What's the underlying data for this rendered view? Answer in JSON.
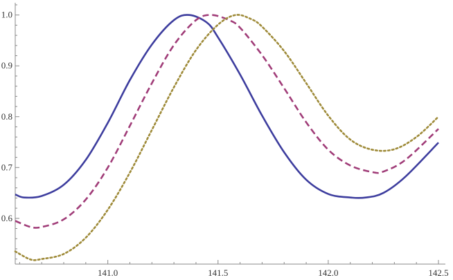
{
  "chart_data": {
    "type": "line",
    "title": "",
    "xlabel": "",
    "ylabel": "",
    "xlim": [
      140.58,
      142.5
    ],
    "ylim": [
      0.51,
      1.02
    ],
    "x_origin": 140.58,
    "y_origin": 0.51,
    "x_ticks": [
      141.0,
      141.5,
      142.0,
      142.5
    ],
    "x_tick_labels": [
      "141.0",
      "141.5",
      "142.0",
      "142.5"
    ],
    "y_ticks": [
      0.6,
      0.7,
      0.8,
      0.9,
      1.0
    ],
    "y_tick_labels": [
      "0.6",
      "0.7",
      "0.8",
      "0.9",
      "1.0"
    ],
    "grid": false,
    "series": [
      {
        "color": "#3d3d9e",
        "style": "solid",
        "x": [
          140.58,
          140.62,
          140.7,
          140.8,
          140.9,
          141.0,
          141.1,
          141.2,
          141.3,
          141.37,
          141.45,
          141.5,
          141.6,
          141.7,
          141.8,
          141.9,
          142.0,
          142.1,
          142.17,
          142.25,
          142.35,
          142.5
        ],
        "y": [
          0.647,
          0.641,
          0.644,
          0.666,
          0.715,
          0.788,
          0.872,
          0.942,
          0.99,
          1.0,
          0.985,
          0.956,
          0.883,
          0.802,
          0.73,
          0.676,
          0.648,
          0.641,
          0.641,
          0.65,
          0.682,
          0.749
        ]
      },
      {
        "color": "#a03c78",
        "style": "dashed",
        "x": [
          140.58,
          140.65,
          140.7,
          140.8,
          140.9,
          141.0,
          141.1,
          141.2,
          141.3,
          141.4,
          141.47,
          141.55,
          141.6,
          141.7,
          141.8,
          141.9,
          142.0,
          142.1,
          142.2,
          142.25,
          142.35,
          142.5
        ],
        "y": [
          0.595,
          0.583,
          0.583,
          0.598,
          0.637,
          0.7,
          0.782,
          0.866,
          0.941,
          0.99,
          1.0,
          0.99,
          0.975,
          0.921,
          0.856,
          0.789,
          0.735,
          0.704,
          0.691,
          0.692,
          0.715,
          0.776
        ]
      },
      {
        "color": "#9e8a38",
        "style": "dotted",
        "x": [
          140.58,
          140.65,
          140.7,
          140.8,
          140.9,
          141.0,
          141.1,
          141.2,
          141.3,
          141.4,
          141.5,
          141.58,
          141.65,
          141.7,
          141.8,
          141.9,
          142.0,
          142.1,
          142.2,
          142.3,
          142.4,
          142.5
        ],
        "y": [
          0.535,
          0.519,
          0.52,
          0.53,
          0.562,
          0.617,
          0.69,
          0.774,
          0.858,
          0.931,
          0.981,
          1.0,
          0.992,
          0.977,
          0.929,
          0.866,
          0.802,
          0.755,
          0.735,
          0.736,
          0.76,
          0.8
        ]
      }
    ]
  }
}
